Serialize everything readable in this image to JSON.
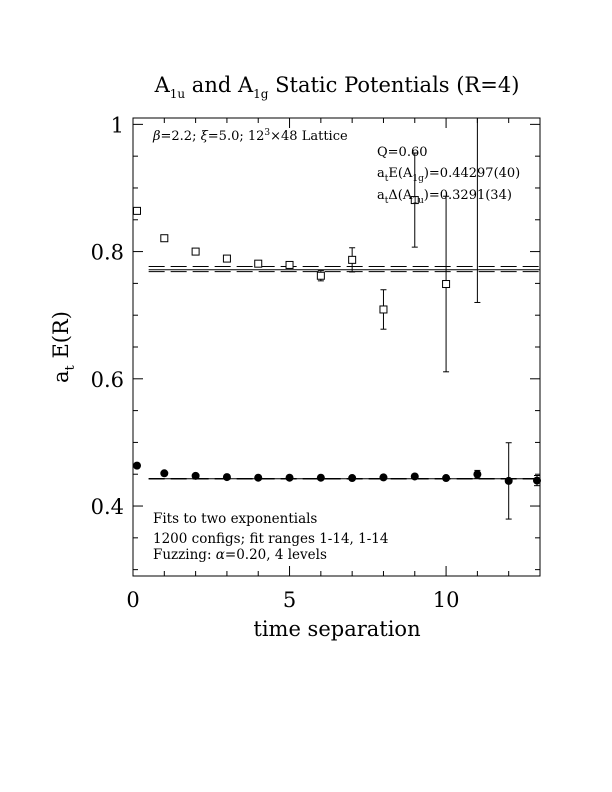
{
  "chart_data": {
    "type": "scatter",
    "title": {
      "prefix": "A",
      "sub1": "1u",
      "mid": " and A",
      "sub2": "1g",
      "suffix": " Static Potentials (R=4)"
    },
    "xlabel": "time separation",
    "ylabel": {
      "main": "a",
      "sub": "t",
      "rest": " E(R)"
    },
    "xlim": [
      0,
      13
    ],
    "ylim": [
      0.29,
      1.01
    ],
    "xticks": [
      {
        "value": 0,
        "label": "0"
      },
      {
        "value": 5,
        "label": "5"
      },
      {
        "value": 10,
        "label": "10"
      }
    ],
    "yticks": [
      {
        "value": 0.4,
        "label": "0.4"
      },
      {
        "value": 0.6,
        "label": "0.6"
      },
      {
        "value": 0.8,
        "label": "0.8"
      },
      {
        "value": 1.0,
        "label": "1"
      }
    ],
    "grid": false,
    "annotations": {
      "lattice": {
        "beta": "β",
        "beta_val": "=2.2;  ",
        "xi": "ξ",
        "xi_val": "=5.0;  12",
        "sup": "3",
        "rest": "×48 Lattice"
      },
      "q": "Q=0.60",
      "energy": {
        "a": "a",
        "a_sub": "t",
        "mid": "E(A",
        "sub": "1g",
        "val": ")=0.44297(40)"
      },
      "gap": {
        "a": "a",
        "a_sub": "t",
        "mid": "Δ(A",
        "sub": "1u",
        "val": ")=0.3291(34)"
      },
      "fits": "Fits to two exponentials",
      "configs": "1200 configs; fit ranges 1-14, 1-14",
      "fuzzing": {
        "pre": "Fuzzing: ",
        "alpha": "α",
        "post": "=0.20, 4 levels"
      }
    },
    "series": [
      {
        "marker": "open-square",
        "points": [
          {
            "x": 0,
            "y": 0.864,
            "err": 0.002
          },
          {
            "x": 1,
            "y": 0.821,
            "err": 0.002
          },
          {
            "x": 2,
            "y": 0.8,
            "err": 0.002
          },
          {
            "x": 3,
            "y": 0.789,
            "err": 0.003
          },
          {
            "x": 4,
            "y": 0.781,
            "err": 0.004
          },
          {
            "x": 5,
            "y": 0.779,
            "err": 0.005
          },
          {
            "x": 6,
            "y": 0.762,
            "err": 0.008
          },
          {
            "x": 7,
            "y": 0.787,
            "err": 0.019
          },
          {
            "x": 8,
            "y": 0.709,
            "err": 0.031
          },
          {
            "x": 9,
            "y": 0.881,
            "err": 0.074
          },
          {
            "x": 10,
            "y": 0.749,
            "err": 0.138
          },
          {
            "x": 11,
            "y": 1.09,
            "err": 0.37
          }
        ]
      },
      {
        "marker": "filled-circle",
        "points": [
          {
            "x": 0,
            "y": 0.4635,
            "err": 0.001
          },
          {
            "x": 1,
            "y": 0.4515,
            "err": 0.001
          },
          {
            "x": 2,
            "y": 0.4475,
            "err": 0.001
          },
          {
            "x": 3,
            "y": 0.4455,
            "err": 0.001
          },
          {
            "x": 4,
            "y": 0.4445,
            "err": 0.001
          },
          {
            "x": 5,
            "y": 0.4445,
            "err": 0.001
          },
          {
            "x": 6,
            "y": 0.4445,
            "err": 0.001
          },
          {
            "x": 7,
            "y": 0.444,
            "err": 0.001
          },
          {
            "x": 8,
            "y": 0.445,
            "err": 0.002
          },
          {
            "x": 9,
            "y": 0.4465,
            "err": 0.003
          },
          {
            "x": 10,
            "y": 0.444,
            "err": 0.004
          },
          {
            "x": 11,
            "y": 0.45,
            "err": 0.006
          },
          {
            "x": 12,
            "y": 0.4395,
            "err": 0.06
          },
          {
            "x": 13,
            "y": 0.44,
            "err": 0.008
          }
        ]
      }
    ],
    "fit_lines": [
      {
        "style": "solid",
        "x": [
          0.5,
          13
        ],
        "y": 0.7715
      },
      {
        "style": "dashed",
        "x": [
          0.5,
          13
        ],
        "y": 0.7765
      },
      {
        "style": "dashed",
        "x": [
          0.5,
          13
        ],
        "y": 0.7685
      },
      {
        "style": "solid",
        "x": [
          0.5,
          13
        ],
        "y": 0.44297
      },
      {
        "style": "dashed",
        "x": [
          0.5,
          13
        ],
        "y": 0.44337
      },
      {
        "style": "dashed",
        "x": [
          0.5,
          13
        ],
        "y": 0.44257
      }
    ]
  }
}
